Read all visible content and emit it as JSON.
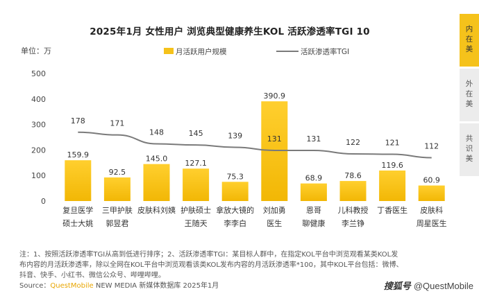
{
  "side_tabs": [
    {
      "label": "内在美",
      "active": true
    },
    {
      "label": "外在美",
      "active": false
    },
    {
      "label": "共识美",
      "active": false
    }
  ],
  "notes": {
    "line1": "注：1、按照活跃渗透率TGI从高到低进行排序；2、活跃渗透率TGI：某目标人群中，在指定KOL平台中浏览观看某类KOL发",
    "line2": "布内容的月活跃渗透率，除以全网在KOL平台中浏览观看该类KOL发布内容的月活跃渗透率*100，其中KOL平台包括：微博、",
    "line3": "抖音、快手、小红书、微信公众号、哔哩哔哩。",
    "source_prefix": "Source：",
    "source_brand": "QuestMobile",
    "source_suffix": " NEW MEDIA 新媒体数据库 2025年1月"
  },
  "watermark": {
    "badge": "搜狐号",
    "text": "@QuestMobile"
  },
  "colors": {
    "bar": "#f5c21b",
    "line": "#7a7a7a",
    "accent": "#f5c21b",
    "tab_inactive": "#ececec"
  },
  "chart_data": {
    "type": "bar",
    "title": "2025年1月 女性用户 浏览典型健康养生KOL 活跃渗透率TGI 10",
    "unit_label": "单位：万",
    "legend_position": "top",
    "categories": [
      [
        "复旦医学",
        "硕士大姚"
      ],
      [
        "三甲护肤",
        "郭昱君"
      ],
      [
        "皮肤科刘姨",
        ""
      ],
      [
        "护肤硕士",
        "王随天"
      ],
      [
        "拿放大镜的",
        "李李白"
      ],
      [
        "刘加勇",
        "医生"
      ],
      [
        "恩哥",
        "聊健康"
      ],
      [
        "儿科教授",
        "李兰铮"
      ],
      [
        "丁香医生",
        ""
      ],
      [
        "皮肤科",
        "周星医生"
      ]
    ],
    "series": [
      {
        "name": "月活跃用户规模",
        "type": "bar",
        "axis": "left",
        "values": [
          159.9,
          92.5,
          145.0,
          127.1,
          75.3,
          390.9,
          68.9,
          78.6,
          119.6,
          60.9
        ],
        "labels": [
          "159.9",
          "92.5",
          "145.0",
          "127.1",
          "75.3",
          "390.9",
          "68.9",
          "78.6",
          "119.6",
          "60.9"
        ]
      },
      {
        "name": "活跃渗透率TGI",
        "type": "line",
        "axis": "right",
        "values": [
          178,
          171,
          148,
          145,
          139,
          131,
          131,
          122,
          121,
          112
        ],
        "labels": [
          "178",
          "171",
          "148",
          "145",
          "139",
          "131",
          "131",
          "122",
          "121",
          "112"
        ]
      }
    ],
    "y_ticks": [
      0,
      100,
      200,
      300,
      400,
      500
    ],
    "ylim": [
      0,
      500
    ],
    "y2lim": [
      0,
      330
    ],
    "grid": false
  }
}
